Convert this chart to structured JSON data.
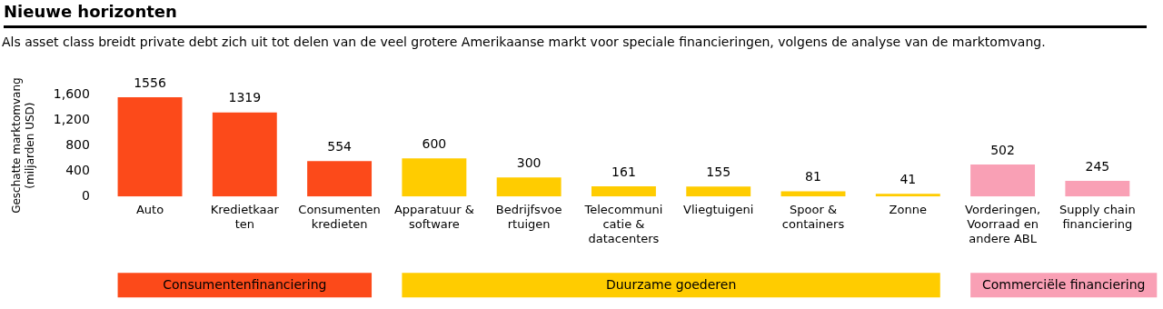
{
  "chart_data": {
    "type": "bar",
    "title": "Nieuwe horizonten",
    "subtitle": "Als asset class breidt private debt zich uit tot delen van de veel grotere Amerikaanse markt voor speciale financieringen, volgens de analyse van de marktomvang.",
    "ylabel": "Geschatte marktomvang (miljarden USD)",
    "categories": [
      "Auto",
      "Kredietkaarten",
      "Consumentenkredieten",
      "Apparatuur & software",
      "Bedrijfsvoertuigen",
      "Telecommunicatie & datacenters",
      "Vliegtuigeni",
      "Spoor & containers",
      "Zonne",
      "Vorderingen, Voorraad en andere ABL",
      "Supply chain financiering"
    ],
    "values": [
      1556,
      1319,
      554,
      600,
      300,
      161,
      155,
      81,
      41,
      502,
      245
    ],
    "colors": [
      "#fc4a1a",
      "#fc4a1a",
      "#fc4a1a",
      "#ffcc00",
      "#ffcc00",
      "#ffcc00",
      "#ffcc00",
      "#ffcc00",
      "#ffcc00",
      "#f9a0b5",
      "#f9a0b5"
    ],
    "ylim": [
      0,
      1600
    ],
    "yticks": [
      0,
      {
        "value": 400,
        "label": "400"
      },
      {
        "value": 800,
        "label": "800"
      },
      {
        "value": 1200,
        "label": "1,200"
      },
      {
        "value": 1600,
        "label": "1,600"
      }
    ],
    "grid": false,
    "legend": false,
    "data_labels": true,
    "annotations": [
      "Consumentenfinanciering",
      "Duurzame goederen",
      "Commerciële financiering"
    ]
  }
}
